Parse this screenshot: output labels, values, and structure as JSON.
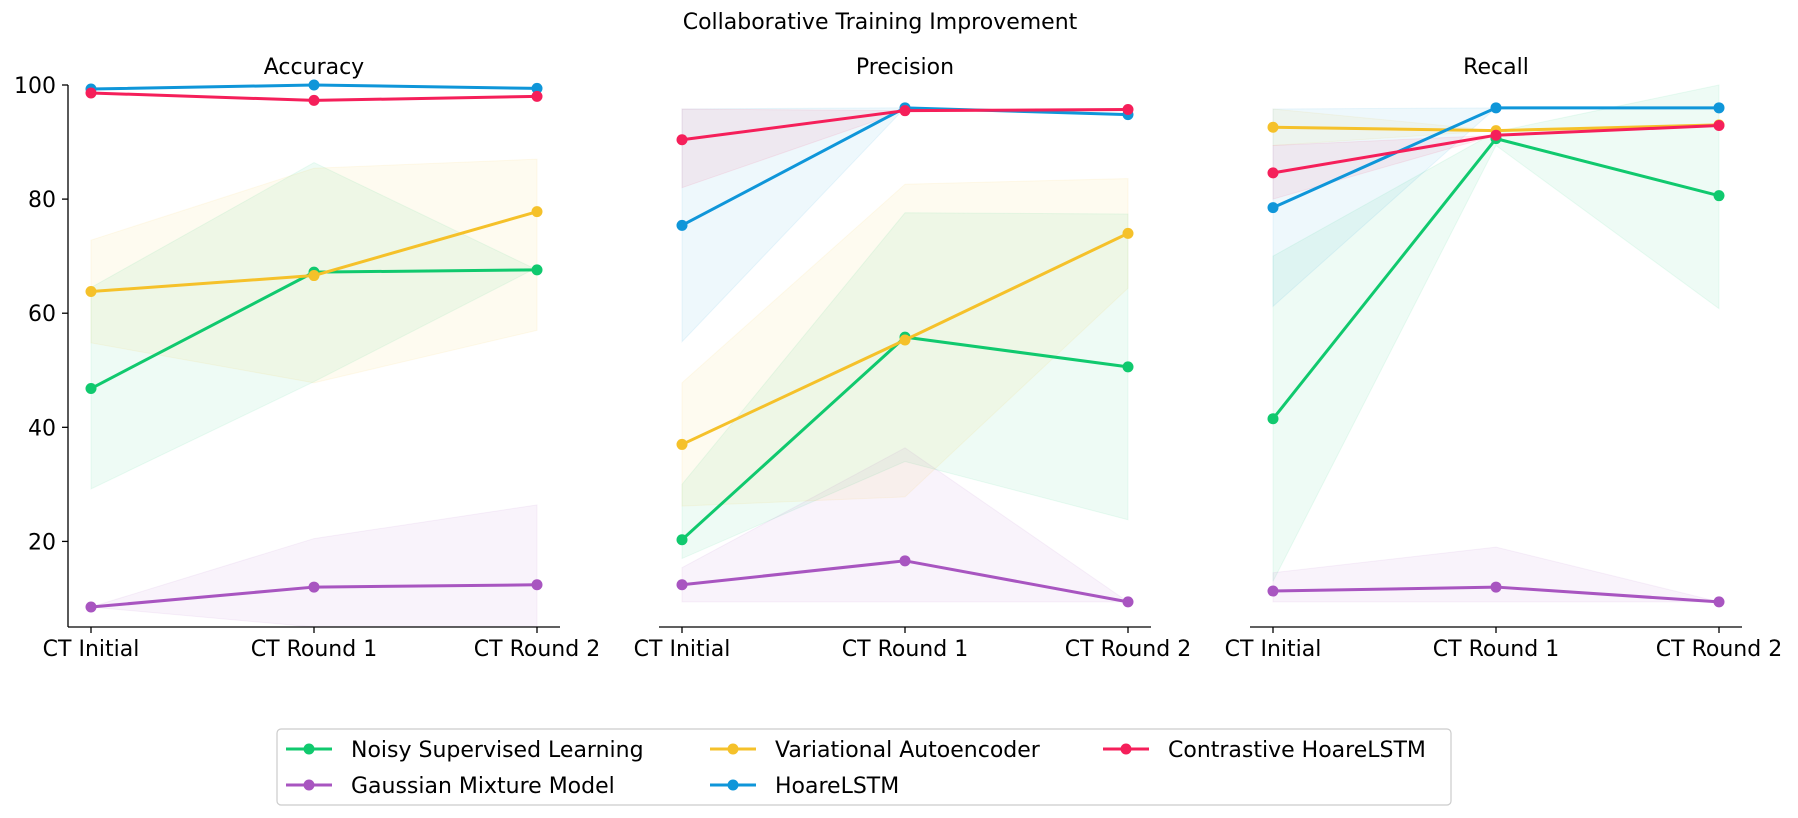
{
  "suptitle": "Collaborative Training Improvement",
  "chart_data": {
    "type": "line",
    "categories": [
      "CT Initial",
      "CT Round 1",
      "CT Round 2"
    ],
    "ylim": [
      5,
      100
    ],
    "yticks": [
      20,
      40,
      60,
      80,
      100
    ],
    "grid": false,
    "legend_position": "bottom-center",
    "series_styles": [
      {
        "name": "Noisy Supervised Learning",
        "color": "#10c96e"
      },
      {
        "name": "Gaussian Mixture Model",
        "color": "#a855c0"
      },
      {
        "name": "Variational Autoencoder",
        "color": "#f5c12a"
      },
      {
        "name": "HoareLSTM",
        "color": "#0f96d9"
      },
      {
        "name": "Contrastive HoareLSTM",
        "color": "#f51f5a"
      }
    ],
    "panels": [
      {
        "title": "Accuracy",
        "series": [
          {
            "name": "Noisy Supervised Learning",
            "values": [
              46.8,
              67.2,
              67.6
            ],
            "band_low": [
              29.2,
              48.0,
              68.0
            ],
            "band_high": [
              64.5,
              86.4,
              67.6
            ]
          },
          {
            "name": "Gaussian Mixture Model",
            "values": [
              8.5,
              12.0,
              12.4
            ],
            "band_low": [
              8.5,
              5.0,
              5.0
            ],
            "band_high": [
              8.5,
              20.5,
              26.4
            ]
          },
          {
            "name": "Variational Autoencoder",
            "values": [
              63.8,
              66.6,
              77.8
            ],
            "band_low": [
              54.8,
              47.8,
              57.0
            ],
            "band_high": [
              72.8,
              85.4,
              87.0
            ]
          },
          {
            "name": "HoareLSTM",
            "values": [
              99.3,
              100.0,
              99.4
            ],
            "band_low": [
              99.3,
              100.0,
              99.4
            ],
            "band_high": [
              99.3,
              100.0,
              99.4
            ]
          },
          {
            "name": "Contrastive HoareLSTM",
            "values": [
              98.6,
              97.3,
              98.0
            ],
            "band_low": [
              98.6,
              97.3,
              98.0
            ],
            "band_high": [
              98.6,
              97.3,
              98.0
            ]
          }
        ]
      },
      {
        "title": "Precision",
        "series": [
          {
            "name": "Noisy Supervised Learning",
            "values": [
              20.3,
              55.8,
              50.6
            ],
            "band_low": [
              17.0,
              34.0,
              23.8
            ],
            "band_high": [
              30.0,
              77.6,
              77.4
            ]
          },
          {
            "name": "Gaussian Mixture Model",
            "values": [
              12.4,
              16.6,
              9.4
            ],
            "band_low": [
              9.4,
              9.4,
              9.4
            ],
            "band_high": [
              15.4,
              36.4,
              9.4
            ]
          },
          {
            "name": "Variational Autoencoder",
            "values": [
              37.0,
              55.3,
              74.0
            ],
            "band_low": [
              26.2,
              27.8,
              64.4
            ],
            "band_high": [
              47.8,
              82.6,
              83.6
            ]
          },
          {
            "name": "HoareLSTM",
            "values": [
              75.4,
              96.0,
              94.8
            ],
            "band_low": [
              55.0,
              96.0,
              94.8
            ],
            "band_high": [
              95.8,
              96.0,
              94.8
            ]
          },
          {
            "name": "Contrastive HoareLSTM",
            "values": [
              90.4,
              95.5,
              95.7
            ],
            "band_low": [
              82.0,
              95.5,
              95.7
            ],
            "band_high": [
              95.8,
              95.5,
              95.7
            ]
          }
        ]
      },
      {
        "title": "Recall",
        "series": [
          {
            "name": "Noisy Supervised Learning",
            "values": [
              41.5,
              90.6,
              80.6
            ],
            "band_low": [
              13.0,
              89.4,
              60.8
            ],
            "band_high": [
              70.0,
              91.8,
              100.0
            ]
          },
          {
            "name": "Gaussian Mixture Model",
            "values": [
              11.3,
              12.0,
              9.4
            ],
            "band_low": [
              9.4,
              9.4,
              9.4
            ],
            "band_high": [
              14.5,
              19.0,
              9.4
            ]
          },
          {
            "name": "Variational Autoencoder",
            "values": [
              92.6,
              92.0,
              93.0
            ],
            "band_low": [
              89.4,
              92.0,
              93.0
            ],
            "band_high": [
              95.8,
              92.0,
              93.0
            ]
          },
          {
            "name": "HoareLSTM",
            "values": [
              78.5,
              96.0,
              96.0
            ],
            "band_low": [
              61.2,
              96.0,
              96.0
            ],
            "band_high": [
              95.8,
              96.0,
              96.0
            ]
          },
          {
            "name": "Contrastive HoareLSTM",
            "values": [
              84.6,
              91.2,
              92.9
            ],
            "band_low": [
              80.0,
              91.2,
              92.9
            ],
            "band_high": [
              89.4,
              91.2,
              92.9
            ]
          }
        ]
      }
    ]
  },
  "legend": {
    "items": [
      {
        "label": "Noisy Supervised Learning",
        "color": "#10c96e"
      },
      {
        "label": "Gaussian Mixture Model",
        "color": "#a855c0"
      },
      {
        "label": "Variational Autoencoder",
        "color": "#f5c12a"
      },
      {
        "label": "HoareLSTM",
        "color": "#0f96d9"
      },
      {
        "label": "Contrastive HoareLSTM",
        "color": "#f51f5a"
      }
    ]
  }
}
